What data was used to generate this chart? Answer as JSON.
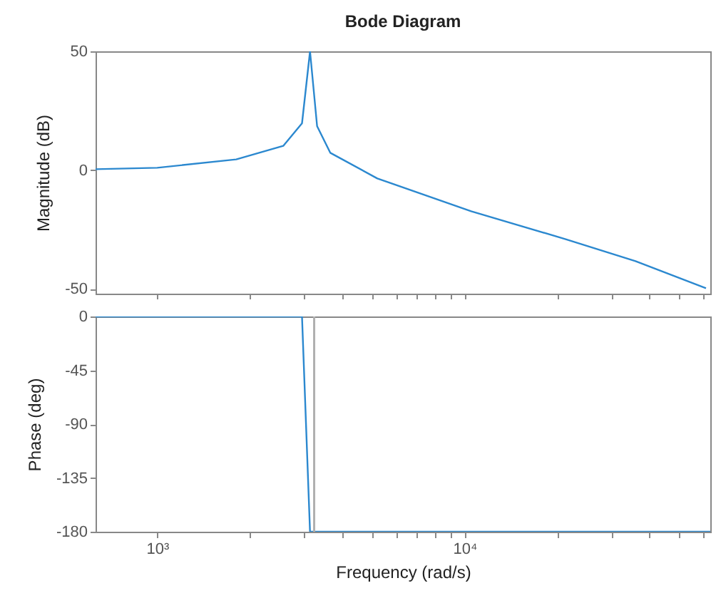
{
  "chart_data": [
    {
      "type": "line",
      "title": "Bode Diagram",
      "ylabel": "Magnitude (dB)",
      "log": "x",
      "tick_labels": "y",
      "xlim": [
        630,
        63000
      ],
      "ylim": [
        -52,
        50
      ],
      "xticks": [
        {
          "value": 1000,
          "label": null
        },
        {
          "value": 2000,
          "label": null
        },
        {
          "value": 3000,
          "label": null
        },
        {
          "value": 4000,
          "label": null
        },
        {
          "value": 5000,
          "label": null
        },
        {
          "value": 6000,
          "label": null
        },
        {
          "value": 7000,
          "label": null
        },
        {
          "value": 8000,
          "label": null
        },
        {
          "value": 9000,
          "label": null
        },
        {
          "value": 10000,
          "label": null
        },
        {
          "value": 20000,
          "label": null
        },
        {
          "value": 30000,
          "label": null
        },
        {
          "value": 40000,
          "label": null
        },
        {
          "value": 50000,
          "label": null
        },
        {
          "value": 60000,
          "label": null
        }
      ],
      "yticks": [
        -50,
        0,
        50
      ],
      "x": [
        630,
        1000,
        1807,
        2570,
        2958,
        3141,
        3312,
        3655,
        5200,
        10500,
        21230,
        35970,
        61000
      ],
      "series": [
        {
          "color": "#2b88cf",
          "values": [
            0.4,
            1.0,
            4.5,
            10.2,
            19.7,
            50,
            18.5,
            7.3,
            -3.5,
            -17.3,
            -29,
            -38.3,
            -49.7
          ]
        }
      ]
    },
    {
      "type": "line",
      "xlabel": "Frequency  (rad/s)",
      "ylabel": "Phase (deg)",
      "log": "x",
      "xlim": [
        630,
        63000
      ],
      "ylim": [
        -180,
        0
      ],
      "xticks": [
        {
          "value": 1000,
          "label": "10³"
        },
        {
          "value": 2000,
          "label": null
        },
        {
          "value": 3000,
          "label": null
        },
        {
          "value": 4000,
          "label": null
        },
        {
          "value": 5000,
          "label": null
        },
        {
          "value": 6000,
          "label": null
        },
        {
          "value": 7000,
          "label": null
        },
        {
          "value": 8000,
          "label": null
        },
        {
          "value": 9000,
          "label": null
        },
        {
          "value": 10000,
          "label": "10⁴"
        },
        {
          "value": 20000,
          "label": null
        },
        {
          "value": 30000,
          "label": null
        },
        {
          "value": 40000,
          "label": null
        },
        {
          "value": 50000,
          "label": null
        },
        {
          "value": 60000,
          "label": null
        }
      ],
      "yticks": [
        -180,
        -135,
        -90,
        -45,
        0
      ],
      "x": [
        630,
        2958,
        3141,
        63000
      ],
      "series": [
        {
          "color": "#2b88cf",
          "values": [
            0,
            0,
            -180,
            -180
          ]
        }
      ],
      "ref_lines": [
        {
          "axis": "x",
          "value": 3240,
          "color": "#b0b0b0"
        }
      ]
    }
  ]
}
